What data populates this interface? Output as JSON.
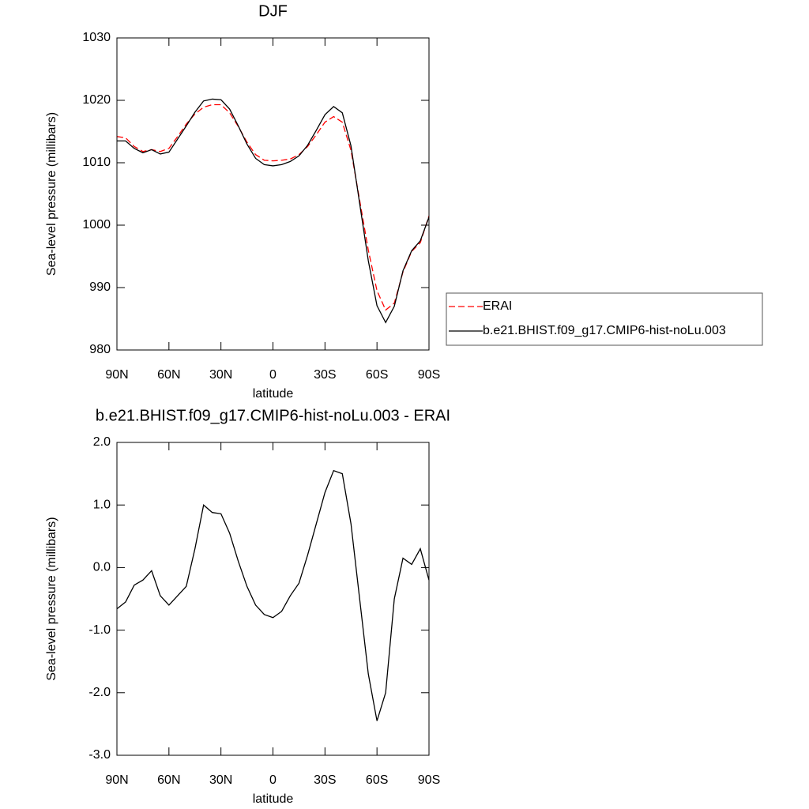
{
  "chart_data": [
    {
      "type": "line",
      "title": "DJF",
      "xlabel": "latitude",
      "ylabel": "Sea-level pressure (millibars)",
      "x": [
        90,
        85,
        80,
        75,
        70,
        65,
        60,
        55,
        50,
        45,
        40,
        35,
        30,
        25,
        20,
        15,
        10,
        5,
        0,
        -5,
        -10,
        -15,
        -20,
        -25,
        -30,
        -35,
        -40,
        -45,
        -50,
        -55,
        -60,
        -65,
        -70,
        -75,
        -80,
        -85,
        -90
      ],
      "xlim": [
        90,
        -90
      ],
      "xticks": [
        {
          "value": 90,
          "label": "90N"
        },
        {
          "value": 60,
          "label": "60N"
        },
        {
          "value": 30,
          "label": "30N"
        },
        0,
        {
          "value": -30,
          "label": "30S"
        },
        {
          "value": -60,
          "label": "60S"
        },
        {
          "value": -90,
          "label": "90S"
        }
      ],
      "ylim": [
        980,
        1030
      ],
      "yticks": [
        980,
        990,
        1000,
        1010,
        1020,
        1030
      ],
      "legend": "right",
      "series": [
        {
          "name": "ERAI",
          "color": "#ff0000",
          "style": "dashed",
          "values": [
            1014.2,
            1014.0,
            1012.6,
            1011.8,
            1012.1,
            1011.8,
            1012.3,
            1014.2,
            1016.2,
            1017.8,
            1018.9,
            1019.3,
            1019.3,
            1018.0,
            1015.8,
            1013.3,
            1011.3,
            1010.4,
            1010.3,
            1010.4,
            1010.6,
            1011.3,
            1012.6,
            1014.5,
            1016.5,
            1017.4,
            1016.5,
            1012.0,
            1004.0,
            996.0,
            989.5,
            986.4,
            987.5,
            992.5,
            995.8,
            997.2,
            1001.5
          ]
        },
        {
          "name": "b.e21.BHIST.f09_g17.CMIP6-hist-noLu.003",
          "color": "#000000",
          "style": "solid",
          "values": [
            1013.5,
            1013.5,
            1012.3,
            1011.6,
            1012.1,
            1011.4,
            1011.7,
            1013.8,
            1015.9,
            1018.1,
            1019.9,
            1020.2,
            1020.1,
            1018.6,
            1015.9,
            1013.0,
            1010.7,
            1009.7,
            1009.5,
            1009.7,
            1010.2,
            1011.1,
            1012.8,
            1015.2,
            1017.7,
            1019.0,
            1018.0,
            1012.7,
            1003.5,
            994.3,
            987.1,
            984.4,
            987.0,
            992.7,
            995.9,
            997.5,
            1001.3
          ]
        }
      ]
    },
    {
      "type": "line",
      "title": "b.e21.BHIST.f09_g17.CMIP6-hist-noLu.003 - ERAI",
      "xlabel": "latitude",
      "ylabel": "Sea-level pressure (millibars)",
      "x": [
        90,
        85,
        80,
        75,
        70,
        65,
        60,
        55,
        50,
        45,
        40,
        35,
        30,
        25,
        20,
        15,
        10,
        5,
        0,
        -5,
        -10,
        -15,
        -20,
        -25,
        -30,
        -35,
        -40,
        -45,
        -50,
        -55,
        -60,
        -65,
        -70,
        -75,
        -80,
        -85,
        -90
      ],
      "xlim": [
        90,
        -90
      ],
      "xticks": [
        {
          "value": 90,
          "label": "90N"
        },
        {
          "value": 60,
          "label": "60N"
        },
        {
          "value": 30,
          "label": "30N"
        },
        0,
        {
          "value": -30,
          "label": "30S"
        },
        {
          "value": -60,
          "label": "60S"
        },
        {
          "value": -90,
          "label": "90S"
        }
      ],
      "ylim": [
        -3,
        2
      ],
      "yticks": [
        {
          "value": -3,
          "label": "-3.0"
        },
        {
          "value": -2,
          "label": "-2.0"
        },
        {
          "value": -1,
          "label": "-1.0"
        },
        {
          "value": 0,
          "label": "0.0"
        },
        {
          "value": 1,
          "label": "1.0"
        },
        {
          "value": 2,
          "label": "2.0"
        }
      ],
      "series": [
        {
          "color": "#000000",
          "style": "solid",
          "values": [
            -0.66,
            -0.55,
            -0.28,
            -0.2,
            -0.05,
            -0.45,
            -0.6,
            -0.45,
            -0.3,
            0.3,
            1.0,
            0.88,
            0.86,
            0.55,
            0.1,
            -0.3,
            -0.6,
            -0.75,
            -0.8,
            -0.7,
            -0.45,
            -0.25,
            0.2,
            0.7,
            1.2,
            1.55,
            1.5,
            0.7,
            -0.5,
            -1.7,
            -2.45,
            -2.0,
            -0.5,
            0.15,
            0.05,
            0.3,
            -0.2
          ]
        }
      ]
    }
  ]
}
